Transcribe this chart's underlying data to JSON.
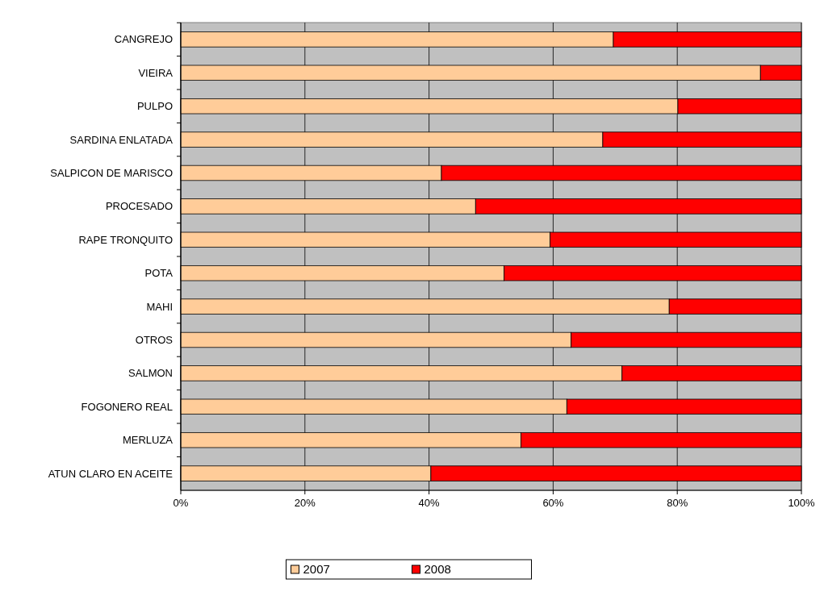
{
  "chart_data": {
    "type": "bar",
    "orientation": "horizontal",
    "stacked": true,
    "categories": [
      "CANGREJO",
      "VIEIRA",
      "PULPO",
      "SARDINA ENLATADA",
      "SALPICON DE MARISCO",
      "PROCESADO",
      "RAPE TRONQUITO",
      "POTA",
      "MAHI",
      "OTROS",
      "SALMON",
      "FOGONERO REAL",
      "MERLUZA",
      "ATUN CLARO EN ACEITE"
    ],
    "series": [
      {
        "name": "2007",
        "color": "#ffcc99",
        "values": [
          69.7,
          93.4,
          80.1,
          68.0,
          42.0,
          47.5,
          59.5,
          52.1,
          78.7,
          62.9,
          71.1,
          62.2,
          54.8,
          40.3
        ]
      },
      {
        "name": "2008",
        "color": "#ff0000",
        "values": [
          30.3,
          6.6,
          19.9,
          32.0,
          58.0,
          52.5,
          40.5,
          47.9,
          21.3,
          37.1,
          28.9,
          37.8,
          45.2,
          59.7
        ]
      }
    ],
    "xlim": [
      0,
      100
    ],
    "xticks": [
      {
        "value": 0,
        "label": "0%"
      },
      {
        "value": 20,
        "label": "20%"
      },
      {
        "value": 40,
        "label": "40%"
      },
      {
        "value": 60,
        "label": "60%"
      },
      {
        "value": 80,
        "label": "80%"
      },
      {
        "value": 100,
        "label": "100%"
      }
    ],
    "grid": "x",
    "legend": "bottom"
  }
}
